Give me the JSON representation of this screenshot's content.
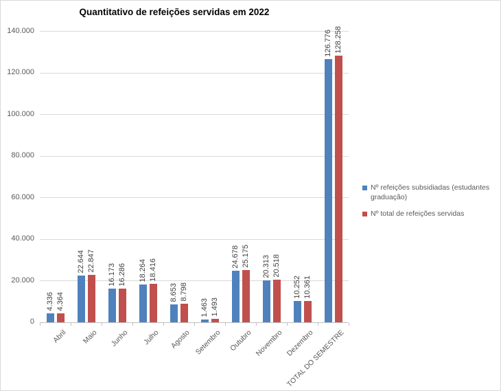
{
  "chart_data": {
    "type": "bar",
    "title": "Quantitativo de refeições servidas em 2022",
    "categories": [
      "Abril",
      "Maio",
      "Junho",
      "Julho",
      "Agosto",
      "Setembro",
      "Outubro",
      "Novembro",
      "Dezembro",
      "TOTAL DO SEMESTRE"
    ],
    "series": [
      {
        "name": "Nº refeições subsidiadas (estudantes graduação)",
        "color": "#4F81BD",
        "values": [
          4336,
          22644,
          16173,
          18264,
          8653,
          1463,
          24678,
          20313,
          10252,
          126776
        ]
      },
      {
        "name": "Nº total de refeições servidas",
        "color": "#C0504D",
        "values": [
          4364,
          22847,
          16286,
          18416,
          8798,
          1493,
          25175,
          20518,
          10361,
          128258
        ]
      }
    ],
    "y_axis": {
      "min": 0,
      "max": 140000,
      "step": 20000,
      "tick_labels": [
        "0",
        "20.000",
        "40.000",
        "60.000",
        "80.000",
        "100.000",
        "120.000",
        "140.000"
      ]
    },
    "x_label_rotation_deg": 45,
    "data_label_rotation": "vertical",
    "grid": true,
    "legend_position": "right",
    "number_format": "thousands-dot"
  },
  "colors": {
    "series1": "#4F81BD",
    "series2": "#C0504D",
    "gridline": "#D9D9D9",
    "axis_line": "#BFBFBF",
    "axis_label": "#595959",
    "data_label": "#404040",
    "legend_text": "#595959",
    "title": "#000000",
    "chart_border": "#D9D9D9",
    "background": "#FFFFFF"
  }
}
